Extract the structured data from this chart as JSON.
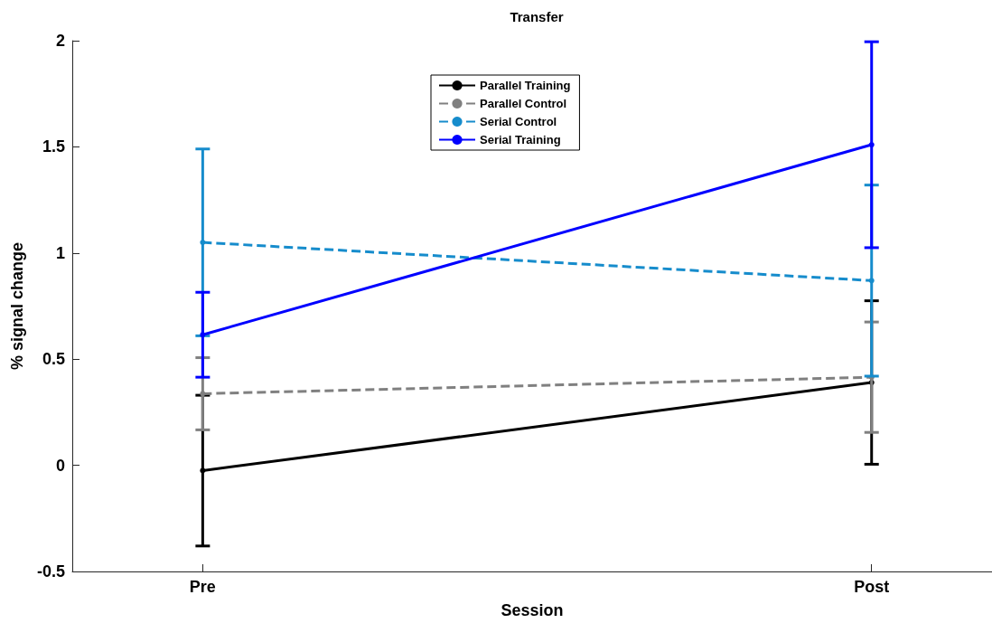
{
  "chart_data": {
    "type": "line",
    "title": "Transfer",
    "xlabel": "Session",
    "ylabel": "% signal change",
    "categories": [
      "Pre",
      "Post"
    ],
    "ylim": [
      -0.5,
      2
    ],
    "yticks": [
      -0.5,
      0,
      0.5,
      1,
      1.5,
      2
    ],
    "legend": "top",
    "marker": "circle",
    "series": [
      {
        "name": "Parallel Training",
        "color": "#000000",
        "line_style": "solid",
        "values": [
          -0.025,
          0.39
        ],
        "errors": [
          0.355,
          0.385
        ]
      },
      {
        "name": "Parallel Control",
        "color": "#808080",
        "line_style": "dashed",
        "values": [
          0.337,
          0.415
        ],
        "errors": [
          0.17,
          0.26
        ]
      },
      {
        "name": "Serial Control",
        "color": "#168ccc",
        "line_style": "dashed",
        "values": [
          1.05,
          0.87
        ],
        "errors": [
          0.44,
          0.45
        ]
      },
      {
        "name": "Serial Training",
        "color": "#0000ff",
        "line_style": "solid",
        "values": [
          0.615,
          1.51
        ],
        "errors": [
          0.2,
          0.485
        ]
      }
    ]
  }
}
